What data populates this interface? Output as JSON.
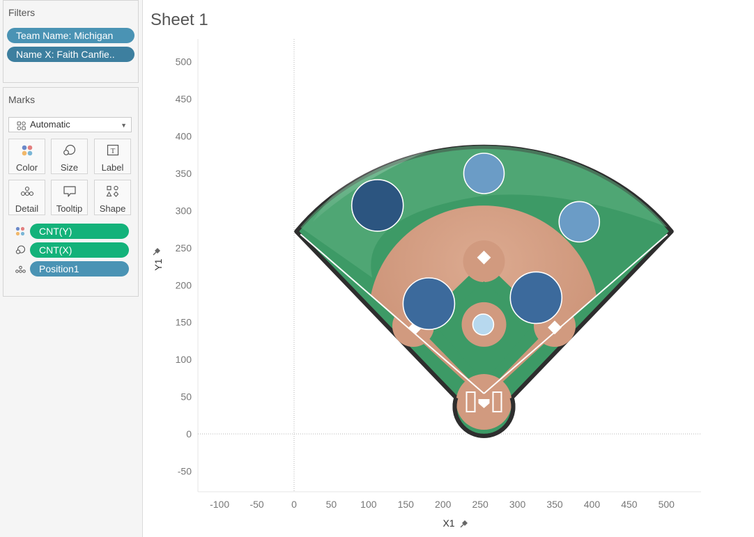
{
  "filters": {
    "title": "Filters",
    "items": [
      "Team Name: Michigan",
      "Name X: Faith Canfie.."
    ]
  },
  "marks": {
    "title": "Marks",
    "mark_type": "Automatic",
    "buttons": [
      "Color",
      "Size",
      "Label",
      "Detail",
      "Tooltip",
      "Shape"
    ],
    "shelf": [
      {
        "label": "CNT(Y)",
        "icon": "color-dots-icon"
      },
      {
        "label": "CNT(X)",
        "icon": "size-icon"
      },
      {
        "label": "Position1",
        "icon": "detail-icon"
      }
    ]
  },
  "sheet": {
    "title": "Sheet 1"
  },
  "colors": {
    "pill_blue": "#4a93b4",
    "pill_green": "#13b27a",
    "outfield": "#3d9a66",
    "infield_dirt": "#d19a7f",
    "mark_dark": "#2c5580",
    "mark_mid": "#3b6b9b",
    "mark_light": "#6b9cc6",
    "mark_lightest": "#b5d5ea"
  },
  "chart_data": {
    "type": "scatter",
    "xlabel": "X1",
    "ylabel": "Y1",
    "x_ticks": [
      "-100",
      "-50",
      "0",
      "50",
      "100",
      "150",
      "200",
      "250",
      "300",
      "350",
      "400",
      "450",
      "500"
    ],
    "y_ticks": [
      "500",
      "450",
      "400",
      "350",
      "300",
      "250",
      "200",
      "150",
      "100",
      "50",
      "0",
      "-50"
    ],
    "xlim": [
      -130,
      545
    ],
    "ylim": [
      -78,
      530
    ],
    "background_image": "baseball-field",
    "points": [
      {
        "x": 112,
        "y": 307,
        "size": 3,
        "color_level": "darkest"
      },
      {
        "x": 255,
        "y": 350,
        "size": 2,
        "color_level": "light"
      },
      {
        "x": 383,
        "y": 285,
        "size": 2,
        "color_level": "light"
      },
      {
        "x": 181,
        "y": 175,
        "size": 3,
        "color_level": "dark"
      },
      {
        "x": 325,
        "y": 183,
        "size": 3,
        "color_level": "dark"
      },
      {
        "x": 254,
        "y": 147,
        "size": 1,
        "color_level": "lightest"
      }
    ]
  }
}
